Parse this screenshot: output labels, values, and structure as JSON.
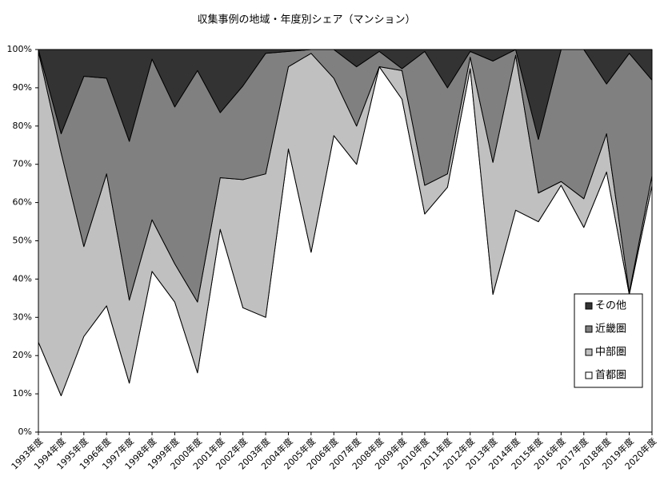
{
  "chart_data": {
    "type": "stacked-area-100",
    "title": "収集事例の地域・年度別シェア（マンション）",
    "categories": [
      "1993年度",
      "1994年度",
      "1995年度",
      "1996年度",
      "1997年度",
      "1998年度",
      "1999年度",
      "2000年度",
      "2001年度",
      "2002年度",
      "2003年度",
      "2004年度",
      "2005年度",
      "2006年度",
      "2007年度",
      "2008年度",
      "2009年度",
      "2010年度",
      "2011年度",
      "2012年度",
      "2013年度",
      "2014年度",
      "2015年度",
      "2016年度",
      "2017年度",
      "2018年度",
      "2019年度",
      "2020年度"
    ],
    "series": [
      {
        "name": "首都圏",
        "color": "#ffffff",
        "values": [
          23.5,
          9.5,
          25,
          33,
          12.8,
          42,
          34,
          15.5,
          53,
          32.5,
          30,
          74,
          47,
          77.5,
          70,
          95.5,
          87,
          57,
          64,
          95,
          36,
          58,
          55,
          64.5,
          53.5,
          68,
          36,
          64.5
        ]
      },
      {
        "name": "中部圏",
        "color": "#c0c0c0",
        "values": [
          76,
          63.5,
          23.5,
          34.5,
          21.7,
          13.5,
          10,
          18.5,
          13.5,
          33.5,
          37.5,
          21.5,
          52,
          15,
          10,
          0,
          7.5,
          7.5,
          3.5,
          3,
          34.5,
          40.5,
          7.5,
          1,
          7.5,
          10,
          0.5,
          2.5
        ]
      },
      {
        "name": "近畿圏",
        "color": "#808080",
        "values": [
          0.5,
          5,
          44.5,
          25,
          41.5,
          42,
          41,
          60.5,
          17,
          24.5,
          31.5,
          4,
          1,
          7.5,
          15.5,
          4,
          0.5,
          35,
          22.5,
          1.5,
          26.5,
          1.5,
          14,
          34.5,
          39,
          13,
          62.5,
          25
        ]
      },
      {
        "name": "その他",
        "color": "#333333",
        "values": [
          0,
          22,
          7,
          7.5,
          24,
          2.5,
          15,
          5.5,
          16.5,
          9.5,
          1,
          0.5,
          0,
          0,
          4.5,
          0.5,
          5,
          0.5,
          10,
          0.5,
          3,
          0,
          23.5,
          0,
          0,
          9,
          1,
          8
        ]
      }
    ],
    "ylim": [
      0,
      100
    ],
    "yticks": [
      {
        "value": 0,
        "label": "0%"
      },
      {
        "value": 10,
        "label": "10%"
      },
      {
        "value": 20,
        "label": "20%"
      },
      {
        "value": 30,
        "label": "30%"
      },
      {
        "value": 40,
        "label": "40%"
      },
      {
        "value": 50,
        "label": "50%"
      },
      {
        "value": 60,
        "label": "60%"
      },
      {
        "value": 70,
        "label": "70%"
      },
      {
        "value": 80,
        "label": "80%"
      },
      {
        "value": 90,
        "label": "90%"
      },
      {
        "value": 100,
        "label": "100%"
      }
    ],
    "legend": "right"
  }
}
